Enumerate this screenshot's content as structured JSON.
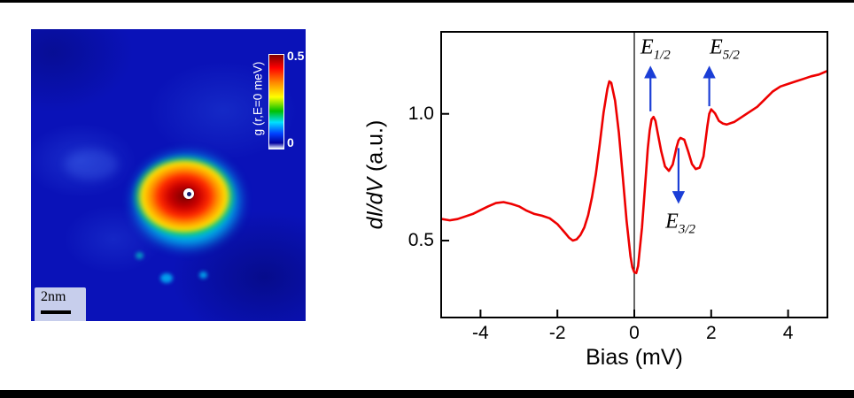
{
  "left_panel": {
    "scalebar_label": "2nm",
    "colorbar": {
      "label": "g (r,E=0 meV)",
      "max": "0.5",
      "min": "0"
    },
    "colors": {
      "background": "#0a12b8",
      "halo": "#00e1ff",
      "core_hot": "#c90000",
      "core_ring": "#ffe000",
      "marker": "#ffffff"
    }
  },
  "chart_data": {
    "type": "line",
    "title": "",
    "xlabel": "Bias (mV)",
    "ylabel": "dI/dV (a.u.)",
    "ylabel_parts": [
      {
        "text": "dI/dV",
        "italic": true
      },
      {
        "text": " (a.u.)",
        "italic": false
      }
    ],
    "xlim": [
      -5,
      5
    ],
    "ylim": [
      0.2,
      1.32
    ],
    "x_ticks": [
      -4,
      -2,
      0,
      2,
      4
    ],
    "y_ticks": [
      0.5,
      1.0
    ],
    "zero_bias_line": true,
    "line_color": "#ee0000",
    "annotation_color": "#1b3ed6",
    "legend": "off",
    "grid": "off",
    "series": [
      {
        "name": "dI/dV spectrum",
        "x": [
          -5.0,
          -4.8,
          -4.6,
          -4.4,
          -4.2,
          -4.0,
          -3.8,
          -3.6,
          -3.4,
          -3.2,
          -3.0,
          -2.8,
          -2.6,
          -2.4,
          -2.2,
          -2.0,
          -1.9,
          -1.8,
          -1.7,
          -1.6,
          -1.5,
          -1.4,
          -1.3,
          -1.2,
          -1.1,
          -1.0,
          -0.9,
          -0.8,
          -0.7,
          -0.65,
          -0.6,
          -0.5,
          -0.4,
          -0.3,
          -0.2,
          -0.1,
          -0.05,
          0.0,
          0.05,
          0.1,
          0.2,
          0.3,
          0.35,
          0.4,
          0.45,
          0.5,
          0.55,
          0.6,
          0.7,
          0.8,
          0.9,
          1.0,
          1.1,
          1.15,
          1.2,
          1.3,
          1.4,
          1.5,
          1.6,
          1.7,
          1.8,
          1.9,
          1.95,
          2.0,
          2.1,
          2.2,
          2.3,
          2.4,
          2.6,
          2.8,
          3.0,
          3.2,
          3.4,
          3.6,
          3.8,
          4.0,
          4.2,
          4.4,
          4.6,
          4.8,
          5.0
        ],
        "y": [
          0.585,
          0.58,
          0.585,
          0.595,
          0.605,
          0.62,
          0.635,
          0.648,
          0.652,
          0.645,
          0.635,
          0.618,
          0.605,
          0.598,
          0.588,
          0.565,
          0.548,
          0.53,
          0.512,
          0.5,
          0.505,
          0.522,
          0.552,
          0.6,
          0.672,
          0.762,
          0.878,
          1.005,
          1.098,
          1.128,
          1.122,
          1.052,
          0.925,
          0.752,
          0.578,
          0.438,
          0.395,
          0.375,
          0.372,
          0.4,
          0.552,
          0.755,
          0.862,
          0.935,
          0.978,
          0.988,
          0.972,
          0.932,
          0.852,
          0.792,
          0.775,
          0.8,
          0.868,
          0.895,
          0.905,
          0.898,
          0.852,
          0.802,
          0.782,
          0.788,
          0.832,
          0.952,
          1.0,
          1.018,
          1.002,
          0.972,
          0.962,
          0.958,
          0.968,
          0.988,
          1.008,
          1.028,
          1.058,
          1.088,
          1.108,
          1.118,
          1.128,
          1.138,
          1.148,
          1.155,
          1.168
        ]
      }
    ],
    "annotations": [
      {
        "base": "E",
        "sub": "1/2",
        "label_x": 0.55,
        "label_y": 1.255,
        "arrow_x": 0.42,
        "arrow_from": 1.01,
        "arrow_to": 1.175
      },
      {
        "base": "E",
        "sub": "5/2",
        "label_x": 2.35,
        "label_y": 1.255,
        "arrow_x": 1.95,
        "arrow_from": 1.03,
        "arrow_to": 1.175
      },
      {
        "base": "E",
        "sub": "3/2",
        "label_x": 1.2,
        "label_y": 0.565,
        "arrow_x": 1.15,
        "arrow_from": 0.865,
        "arrow_to": 0.66
      }
    ]
  }
}
